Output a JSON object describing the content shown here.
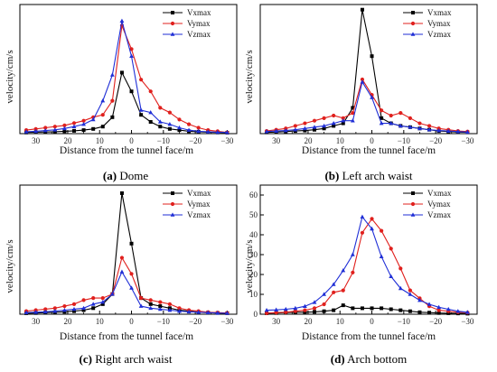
{
  "colors": {
    "Vxmax": "#000000",
    "Vymax": "#e0201d",
    "Vzmax": "#1f2ed6"
  },
  "marker_shapes": {
    "Vxmax": "square",
    "Vymax": "circle",
    "Vzmax": "triangle"
  },
  "chart_data": [
    {
      "type": "line",
      "caption_letter": "(a)",
      "caption_text": " Dome",
      "xlabel": "Distance from the tunnel face/m",
      "ylabel": "velocity/cm/s",
      "xlim": [
        35,
        -33
      ],
      "ylim": [
        0,
        55
      ],
      "x_reversed": true,
      "xticks": [
        30,
        20,
        10,
        0,
        -10,
        -20,
        -30
      ],
      "xtick_labels": [
        "30",
        "20",
        "10",
        "0",
        "−10",
        "−20",
        "−30"
      ],
      "legend": [
        "Vxmax",
        "Vymax",
        "Vzmax"
      ],
      "legend_position": "top-right",
      "series": [
        {
          "name": "Vxmax",
          "x": [
            33,
            30,
            27,
            24,
            21,
            18,
            15,
            12,
            9,
            6,
            3,
            0,
            -3,
            -6,
            -9,
            -12,
            -15,
            -18,
            -21,
            -24,
            -27,
            -30
          ],
          "y": [
            0.5,
            0.6,
            0.7,
            0.8,
            1,
            1.2,
            1.5,
            2,
            3,
            7,
            26,
            18,
            8,
            5,
            3,
            2,
            1.5,
            1,
            0.8,
            0.6,
            0.5,
            0.4
          ]
        },
        {
          "name": "Vymax",
          "x": [
            33,
            30,
            27,
            24,
            21,
            18,
            15,
            12,
            9,
            6,
            3,
            0,
            -3,
            -6,
            -9,
            -12,
            -15,
            -18,
            -21,
            -24,
            -27,
            -30
          ],
          "y": [
            1.5,
            2,
            2.5,
            3,
            3.5,
            4.5,
            5.5,
            7,
            8,
            14,
            46,
            36,
            23,
            18,
            11,
            9,
            6,
            4,
            2.5,
            1.5,
            1,
            0.5
          ]
        },
        {
          "name": "Vzmax",
          "x": [
            33,
            30,
            27,
            24,
            21,
            18,
            15,
            12,
            9,
            6,
            3,
            0,
            -3,
            -6,
            -9,
            -12,
            -15,
            -18,
            -21,
            -24,
            -27,
            -30
          ],
          "y": [
            0.8,
            1,
            1.3,
            1.6,
            2.2,
            3,
            4,
            6,
            14,
            25,
            48,
            33,
            10,
            9,
            5,
            4,
            2.5,
            1.5,
            1,
            0.8,
            0.6,
            0.5
          ]
        }
      ]
    },
    {
      "type": "line",
      "caption_letter": "(b)",
      "caption_text": " Left arch waist",
      "xlabel": "Distance from the tunnel face/m",
      "ylabel": "velocity/cm/s",
      "xlim": [
        35,
        -33
      ],
      "ylim": [
        0,
        50
      ],
      "x_reversed": true,
      "xticks": [
        30,
        20,
        10,
        0,
        -10,
        -20,
        -30
      ],
      "xtick_labels": [
        "30",
        "20",
        "10",
        "0",
        "−10",
        "−20",
        "−30"
      ],
      "legend": [
        "Vxmax",
        "Vymax",
        "Vzmax"
      ],
      "legend_position": "top-right",
      "series": [
        {
          "name": "Vxmax",
          "x": [
            33,
            30,
            27,
            24,
            21,
            18,
            15,
            12,
            9,
            6,
            3,
            0,
            -3,
            -6,
            -9,
            -12,
            -15,
            -18,
            -21,
            -24,
            -27,
            -30
          ],
          "y": [
            0.5,
            0.6,
            0.8,
            1,
            1.2,
            1.5,
            2,
            3,
            4,
            10,
            48,
            30,
            6,
            4,
            3,
            2.5,
            2,
            1.5,
            1,
            0.8,
            0.6,
            0.5
          ]
        },
        {
          "name": "Vymax",
          "x": [
            33,
            30,
            27,
            24,
            21,
            18,
            15,
            12,
            9,
            6,
            3,
            0,
            -3,
            -6,
            -9,
            -12,
            -15,
            -18,
            -21,
            -24,
            -27,
            -30
          ],
          "y": [
            1,
            1.5,
            2,
            3,
            4,
            5,
            6,
            7,
            6,
            8,
            21,
            15,
            9,
            7,
            8,
            6,
            4,
            3,
            2,
            1.5,
            1,
            0.8
          ]
        },
        {
          "name": "Vzmax",
          "x": [
            33,
            30,
            27,
            24,
            21,
            18,
            15,
            12,
            9,
            6,
            3,
            0,
            -3,
            -6,
            -9,
            -12,
            -15,
            -18,
            -21,
            -24,
            -27,
            -30
          ],
          "y": [
            0.8,
            1,
            1.2,
            1.5,
            2,
            2.5,
            3,
            4,
            5,
            5,
            20,
            14,
            4,
            4,
            3,
            2.5,
            2,
            1.5,
            1.2,
            1,
            0.8,
            0.6
          ]
        }
      ]
    },
    {
      "type": "line",
      "caption_letter": "(c)",
      "caption_text": " Right arch waist",
      "xlabel": "Distance from the tunnel face/m",
      "ylabel": "velocity/cm/s",
      "xlim": [
        35,
        -33
      ],
      "ylim": [
        0,
        64
      ],
      "x_reversed": true,
      "xticks": [
        30,
        20,
        10,
        0,
        -10,
        -20,
        -30
      ],
      "xtick_labels": [
        "30",
        "20",
        "10",
        "0",
        "−10",
        "−20",
        "−30"
      ],
      "legend": [
        "Vxmax",
        "Vymax",
        "Vzmax"
      ],
      "legend_position": "top-right",
      "series": [
        {
          "name": "Vxmax",
          "x": [
            33,
            30,
            27,
            24,
            21,
            18,
            15,
            12,
            9,
            6,
            3,
            0,
            -3,
            -6,
            -9,
            -12,
            -15,
            -18,
            -21,
            -24,
            -27,
            -30
          ],
          "y": [
            0.5,
            0.6,
            0.8,
            1,
            1.2,
            1.5,
            2,
            3,
            5,
            10,
            60,
            35,
            8,
            5,
            4,
            3,
            2,
            1.5,
            1,
            0.8,
            0.6,
            0.5
          ]
        },
        {
          "name": "Vymax",
          "x": [
            33,
            30,
            27,
            24,
            21,
            18,
            15,
            12,
            9,
            6,
            3,
            0,
            -3,
            -6,
            -9,
            -12,
            -15,
            -18,
            -21,
            -24,
            -27,
            -30
          ],
          "y": [
            1.5,
            2,
            2.5,
            3,
            4,
            5,
            7,
            8,
            8,
            10,
            28,
            20,
            8,
            7,
            6,
            5,
            3,
            2,
            1.5,
            1,
            0.8,
            0.6
          ]
        },
        {
          "name": "Vzmax",
          "x": [
            33,
            30,
            27,
            24,
            21,
            18,
            15,
            12,
            9,
            6,
            3,
            0,
            -3,
            -6,
            -9,
            -12,
            -15,
            -18,
            -21,
            -24,
            -27,
            -30
          ],
          "y": [
            0.8,
            1,
            1.2,
            1.5,
            2,
            2.5,
            3,
            5,
            6,
            10,
            21,
            13,
            4,
            3,
            2.5,
            2,
            1.5,
            1.2,
            1,
            0.8,
            0.6,
            0.5
          ]
        }
      ]
    },
    {
      "type": "line",
      "caption_letter": "(d)",
      "caption_text": " Arch bottom",
      "xlabel": "Distance from the tunnel face/m",
      "ylabel": "velocity/cm/s",
      "xlim": [
        35,
        -33
      ],
      "ylim": [
        0,
        65
      ],
      "x_reversed": true,
      "xticks": [
        30,
        20,
        10,
        0,
        -10,
        -20,
        -30
      ],
      "xtick_labels": [
        "30",
        "20",
        "10",
        "0",
        "−10",
        "−20",
        "−30"
      ],
      "yticks": [
        0,
        10,
        20,
        30,
        40,
        50,
        60
      ],
      "ytick_labels": [
        "0",
        "10",
        "20",
        "30",
        "40",
        "50",
        "60"
      ],
      "legend": [
        "Vxmax",
        "Vymax",
        "Vzmax"
      ],
      "legend_position": "top-right",
      "series": [
        {
          "name": "Vxmax",
          "x": [
            33,
            30,
            27,
            24,
            21,
            18,
            15,
            12,
            9,
            6,
            3,
            0,
            -3,
            -6,
            -9,
            -12,
            -15,
            -18,
            -21,
            -24,
            -27,
            -30
          ],
          "y": [
            0.5,
            0.6,
            0.8,
            1,
            1,
            1.2,
            1.5,
            2,
            4.5,
            3,
            3,
            3,
            3,
            2.5,
            2,
            1.5,
            1,
            0.8,
            0.6,
            0.5,
            0.4,
            0.3
          ]
        },
        {
          "name": "Vymax",
          "x": [
            33,
            30,
            27,
            24,
            21,
            18,
            15,
            12,
            9,
            6,
            3,
            0,
            -3,
            -6,
            -9,
            -12,
            -15,
            -18,
            -21,
            -24,
            -27,
            -30
          ],
          "y": [
            0.5,
            0.8,
            1,
            1.5,
            2,
            3,
            5,
            11,
            12,
            21,
            41,
            48,
            42,
            33,
            23,
            12,
            8,
            4,
            2,
            1.5,
            1,
            0.8
          ]
        },
        {
          "name": "Vzmax",
          "x": [
            33,
            30,
            27,
            24,
            21,
            18,
            15,
            12,
            9,
            6,
            3,
            0,
            -3,
            -6,
            -9,
            -12,
            -15,
            -18,
            -21,
            -24,
            -27,
            -30
          ],
          "y": [
            2,
            2.2,
            2.5,
            3,
            4,
            6,
            10,
            15,
            22,
            30,
            49,
            43,
            29,
            19,
            13,
            10,
            7,
            5,
            3.5,
            2.5,
            1.5,
            1
          ]
        }
      ]
    }
  ]
}
